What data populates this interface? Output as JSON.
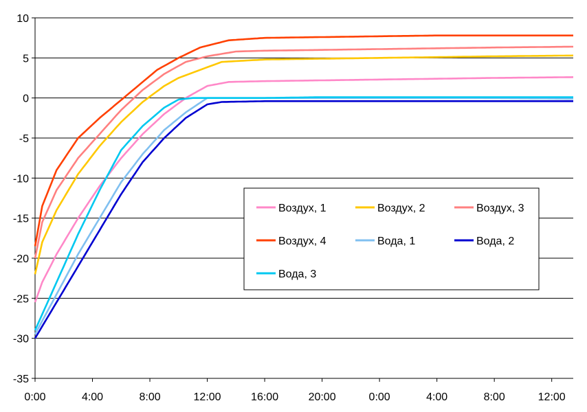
{
  "chart_data": {
    "type": "line",
    "title": "",
    "xlabel": "",
    "ylabel": "",
    "ylim": [
      -35,
      10
    ],
    "y_ticks": [
      10,
      5,
      0,
      -5,
      -10,
      -15,
      -20,
      -25,
      -30,
      -35
    ],
    "x_range_hours": [
      0,
      37.5
    ],
    "x_ticks": [
      {
        "hour": 0,
        "label": "0:00"
      },
      {
        "hour": 4,
        "label": "4:00"
      },
      {
        "hour": 8,
        "label": "8:00"
      },
      {
        "hour": 12,
        "label": "12:00"
      },
      {
        "hour": 16,
        "label": "16:00"
      },
      {
        "hour": 20,
        "label": "20:00"
      },
      {
        "hour": 24,
        "label": "0:00"
      },
      {
        "hour": 28,
        "label": "4:00"
      },
      {
        "hour": 32,
        "label": "8:00"
      },
      {
        "hour": 36,
        "label": "12:00"
      }
    ],
    "grid": "horizontal",
    "legend_position": "center-right",
    "series": [
      {
        "name": "Воздух, 1",
        "color": "#ff88c8",
        "points": [
          [
            0,
            -25.5
          ],
          [
            0.5,
            -23
          ],
          [
            1.5,
            -19.5
          ],
          [
            3,
            -15
          ],
          [
            4.5,
            -11
          ],
          [
            6,
            -7.5
          ],
          [
            7.5,
            -4.5
          ],
          [
            9,
            -2
          ],
          [
            10.5,
            0
          ],
          [
            12,
            1.5
          ],
          [
            13.5,
            2
          ],
          [
            16,
            2.1
          ],
          [
            20,
            2.2
          ],
          [
            24,
            2.3
          ],
          [
            28,
            2.4
          ],
          [
            32,
            2.5
          ],
          [
            37.5,
            2.6
          ]
        ]
      },
      {
        "name": "Воздух, 2",
        "color": "#ffc800",
        "points": [
          [
            0,
            -22
          ],
          [
            0.5,
            -18
          ],
          [
            1.5,
            -14
          ],
          [
            3,
            -9.5
          ],
          [
            4.5,
            -6
          ],
          [
            6,
            -3
          ],
          [
            7.5,
            -0.5
          ],
          [
            9,
            1.5
          ],
          [
            10,
            2.5
          ],
          [
            11.5,
            3.5
          ],
          [
            13,
            4.5
          ],
          [
            16,
            4.8
          ],
          [
            20,
            4.9
          ],
          [
            24,
            5.0
          ],
          [
            28,
            5.1
          ],
          [
            32,
            5.2
          ],
          [
            37.5,
            5.3
          ]
        ]
      },
      {
        "name": "Воздух, 3",
        "color": "#ff8080",
        "points": [
          [
            0,
            -20
          ],
          [
            0.5,
            -15.5
          ],
          [
            1.5,
            -11.5
          ],
          [
            3,
            -7.5
          ],
          [
            4.5,
            -4.5
          ],
          [
            6,
            -1.5
          ],
          [
            7.5,
            1
          ],
          [
            9,
            3
          ],
          [
            10.5,
            4.5
          ],
          [
            12,
            5.2
          ],
          [
            14,
            5.8
          ],
          [
            16,
            5.9
          ],
          [
            20,
            6.0
          ],
          [
            24,
            6.1
          ],
          [
            28,
            6.2
          ],
          [
            32,
            6.3
          ],
          [
            37.5,
            6.4
          ]
        ]
      },
      {
        "name": "Воздух, 4",
        "color": "#ff4000",
        "points": [
          [
            0,
            -18.5
          ],
          [
            0.5,
            -13.5
          ],
          [
            1.5,
            -9
          ],
          [
            3,
            -5
          ],
          [
            4.5,
            -2.5
          ],
          [
            5.5,
            -1
          ],
          [
            6.5,
            0.5
          ],
          [
            7.5,
            2
          ],
          [
            8.5,
            3.5
          ],
          [
            10,
            5
          ],
          [
            11.5,
            6.3
          ],
          [
            13.5,
            7.2
          ],
          [
            16,
            7.5
          ],
          [
            20,
            7.6
          ],
          [
            24,
            7.7
          ],
          [
            28,
            7.8
          ],
          [
            32,
            7.8
          ],
          [
            37.5,
            7.8
          ]
        ]
      },
      {
        "name": "Вода, 1",
        "color": "#80c0f0",
        "points": [
          [
            0,
            -29.5
          ],
          [
            1.5,
            -24.5
          ],
          [
            3,
            -19.5
          ],
          [
            4.5,
            -15
          ],
          [
            6,
            -10.5
          ],
          [
            7.5,
            -7
          ],
          [
            9,
            -4
          ],
          [
            10.5,
            -1.8
          ],
          [
            11.5,
            -0.6
          ],
          [
            12,
            0
          ],
          [
            14,
            0
          ],
          [
            20,
            0
          ],
          [
            24,
            0
          ],
          [
            30,
            0
          ],
          [
            37.5,
            -0.1
          ]
        ]
      },
      {
        "name": "Вода, 2",
        "color": "#0000d0",
        "points": [
          [
            0,
            -30
          ],
          [
            1.5,
            -25.5
          ],
          [
            3,
            -21
          ],
          [
            4.5,
            -16.5
          ],
          [
            6,
            -12
          ],
          [
            7.5,
            -8
          ],
          [
            9,
            -5
          ],
          [
            10.5,
            -2.5
          ],
          [
            12,
            -0.8
          ],
          [
            13,
            -0.5
          ],
          [
            16,
            -0.4
          ],
          [
            20,
            -0.4
          ],
          [
            24,
            -0.4
          ],
          [
            30,
            -0.4
          ],
          [
            37.5,
            -0.4
          ]
        ]
      },
      {
        "name": "Вода, 3",
        "color": "#00c8f0",
        "points": [
          [
            0,
            -29
          ],
          [
            1.5,
            -23
          ],
          [
            3,
            -17
          ],
          [
            4.5,
            -11.5
          ],
          [
            6,
            -6.5
          ],
          [
            7.5,
            -3.5
          ],
          [
            9,
            -1.2
          ],
          [
            10,
            -0.2
          ],
          [
            11,
            0
          ],
          [
            16,
            0
          ],
          [
            20,
            0.1
          ],
          [
            24,
            0.1
          ],
          [
            30,
            0.1
          ],
          [
            37.5,
            0.1
          ]
        ]
      }
    ]
  }
}
